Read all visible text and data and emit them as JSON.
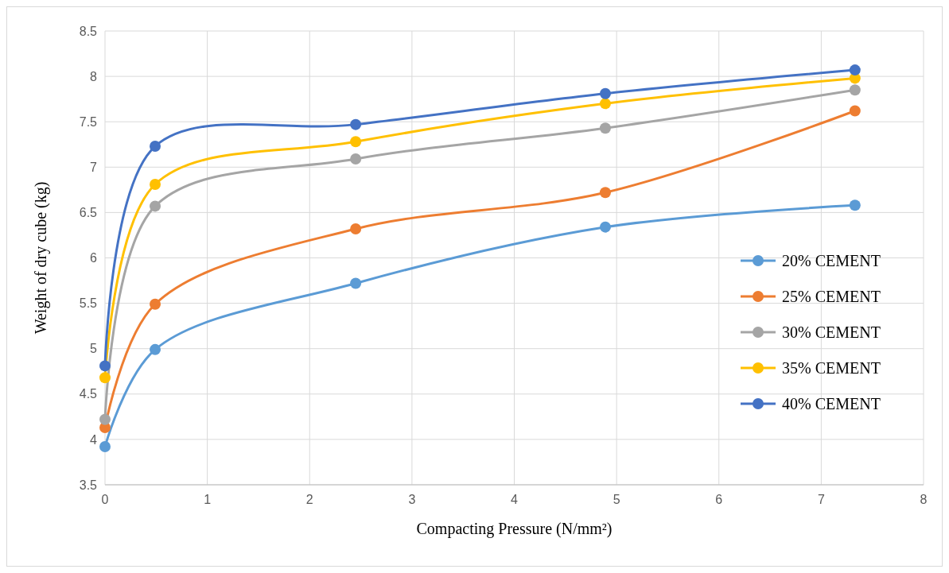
{
  "chart_data": {
    "type": "line",
    "xlabel": "Compacting Pressure (N/mm²)",
    "ylabel": "Weight of dry cube (kg)",
    "x": [
      0,
      0.49,
      2.45,
      4.89,
      7.33
    ],
    "series": [
      {
        "name": "20% CEMENT",
        "color": "#5b9bd5",
        "values": [
          3.92,
          4.99,
          5.72,
          6.34,
          6.58
        ]
      },
      {
        "name": "25% CEMENT",
        "color": "#ed7d31",
        "values": [
          4.13,
          5.49,
          6.32,
          6.72,
          7.62
        ]
      },
      {
        "name": "30% CEMENT",
        "color": "#a5a5a5",
        "values": [
          4.22,
          6.57,
          7.09,
          7.43,
          7.85
        ]
      },
      {
        "name": "35% CEMENT",
        "color": "#ffc000",
        "values": [
          4.68,
          6.81,
          7.28,
          7.7,
          7.98
        ]
      },
      {
        "name": "40% CEMENT",
        "color": "#4472c4",
        "values": [
          4.81,
          7.23,
          7.47,
          7.81,
          8.07
        ]
      }
    ],
    "xlim": [
      0,
      8
    ],
    "xticks": [
      0,
      1,
      2,
      3,
      4,
      5,
      6,
      7,
      8
    ],
    "ylim": [
      3.5,
      8.5
    ],
    "yticks": [
      3.5,
      4,
      4.5,
      5,
      5.5,
      6,
      6.5,
      7,
      7.5,
      8,
      8.5
    ],
    "grid": true,
    "legend": "right",
    "marker": "circle",
    "line_style": "solid"
  }
}
